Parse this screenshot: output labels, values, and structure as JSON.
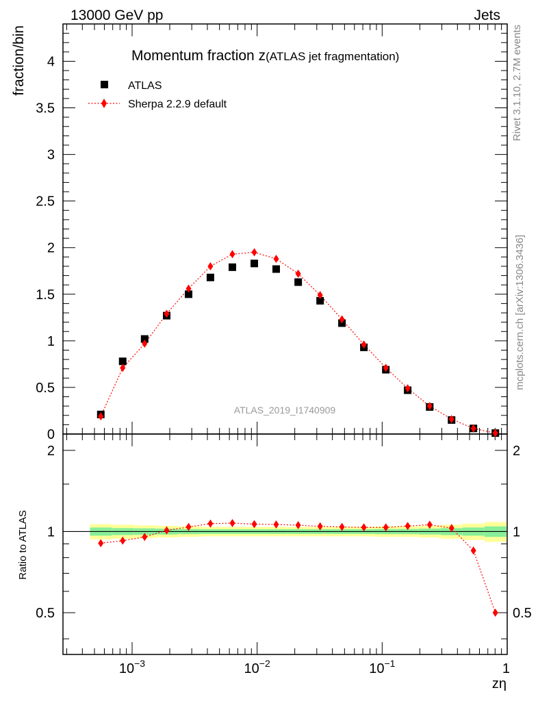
{
  "header": {
    "energy_label": "13000 GeV pp",
    "process_label": "Jets",
    "rivet_label": "Rivet 3.1.10,  2.7M events",
    "mcplots_label": "mcplots.cern.ch [arXiv:1306.3436]",
    "analysis_label": "ATLAS_2019_I1740909"
  },
  "chart_data": {
    "type": "scatter",
    "title": "Momentum fraction z",
    "title_suffix": "(ATLAS jet fragmentation)",
    "ylabel": "fraction/bin",
    "ratio_ylabel": "Ratio to ATLAS",
    "xlabel": "zη",
    "xscale": "log",
    "xlim": [
      0.00028,
      1.0
    ],
    "ylim": [
      0,
      4.4
    ],
    "ratio_ylim": [
      0.35,
      2.3
    ],
    "legend_position": "top-left",
    "x_tick_labels": [
      {
        "value": 0.001,
        "base": "10",
        "exp": "−3"
      },
      {
        "value": 0.01,
        "base": "10",
        "exp": "−2"
      },
      {
        "value": 0.1,
        "base": "10",
        "exp": "−1"
      },
      {
        "value": 1,
        "base": "1",
        "exp": ""
      }
    ],
    "y_ticks": [
      {
        "value": 0,
        "label": "0"
      },
      {
        "value": 0.5,
        "label": "0.5"
      },
      {
        "value": 1,
        "label": "1"
      },
      {
        "value": 1.5,
        "label": "1.5"
      },
      {
        "value": 2,
        "label": "2"
      },
      {
        "value": 2.5,
        "label": "2.5"
      },
      {
        "value": 3,
        "label": "3"
      },
      {
        "value": 3.5,
        "label": "3.5"
      },
      {
        "value": 4,
        "label": "4"
      }
    ],
    "ratio_ticks": [
      {
        "value": 0.5,
        "label": "0.5"
      },
      {
        "value": 1,
        "label": "1"
      },
      {
        "value": 2,
        "label": "2"
      }
    ],
    "x": [
      0.000562,
      0.000841,
      0.00126,
      0.00189,
      0.00283,
      0.00423,
      0.00634,
      0.00949,
      0.0142,
      0.0213,
      0.0319,
      0.0477,
      0.0714,
      0.107,
      0.16,
      0.24,
      0.359,
      0.537,
      0.804
    ],
    "x_edges": [
      0.00046,
      0.000688,
      0.00103,
      0.00154,
      0.00231,
      0.00346,
      0.00518,
      0.00776,
      0.0116,
      0.0174,
      0.026,
      0.0389,
      0.0583,
      0.0873,
      0.131,
      0.196,
      0.293,
      0.439,
      0.658,
      0.985
    ],
    "series": [
      {
        "name": "ATLAS",
        "marker": "square",
        "color": "#000000",
        "values": [
          0.21,
          0.78,
          1.02,
          1.27,
          1.5,
          1.68,
          1.79,
          1.83,
          1.77,
          1.63,
          1.43,
          1.19,
          0.93,
          0.69,
          0.47,
          0.29,
          0.15,
          0.06,
          0.01
        ]
      },
      {
        "name": "Sherpa 2.2.9 default",
        "marker": "diamond",
        "color": "#ff0000",
        "line_style": "dotted",
        "values": [
          0.19,
          0.71,
          0.97,
          1.29,
          1.56,
          1.8,
          1.93,
          1.95,
          1.88,
          1.72,
          1.49,
          1.23,
          0.96,
          0.71,
          0.49,
          0.3,
          0.16,
          0.06,
          0.01
        ]
      }
    ],
    "ratio": [
      0.905,
      0.925,
      0.955,
      1.01,
      1.04,
      1.07,
      1.075,
      1.065,
      1.062,
      1.056,
      1.045,
      1.04,
      1.036,
      1.036,
      1.048,
      1.06,
      1.03,
      0.85,
      0.5
    ],
    "ratio_band_yellow": [
      0.065,
      0.06,
      0.055,
      0.05,
      0.045,
      0.04,
      0.04,
      0.04,
      0.04,
      0.04,
      0.04,
      0.04,
      0.04,
      0.045,
      0.045,
      0.05,
      0.06,
      0.07,
      0.085
    ],
    "ratio_band_green": [
      0.035,
      0.03,
      0.028,
      0.025,
      0.022,
      0.02,
      0.02,
      0.02,
      0.02,
      0.02,
      0.02,
      0.02,
      0.02,
      0.022,
      0.022,
      0.025,
      0.03,
      0.035,
      0.045
    ],
    "colors": {
      "band_yellow": "#ffff99",
      "band_green": "#88ee99",
      "reference": "#000000",
      "mc": "#ff0000"
    }
  }
}
